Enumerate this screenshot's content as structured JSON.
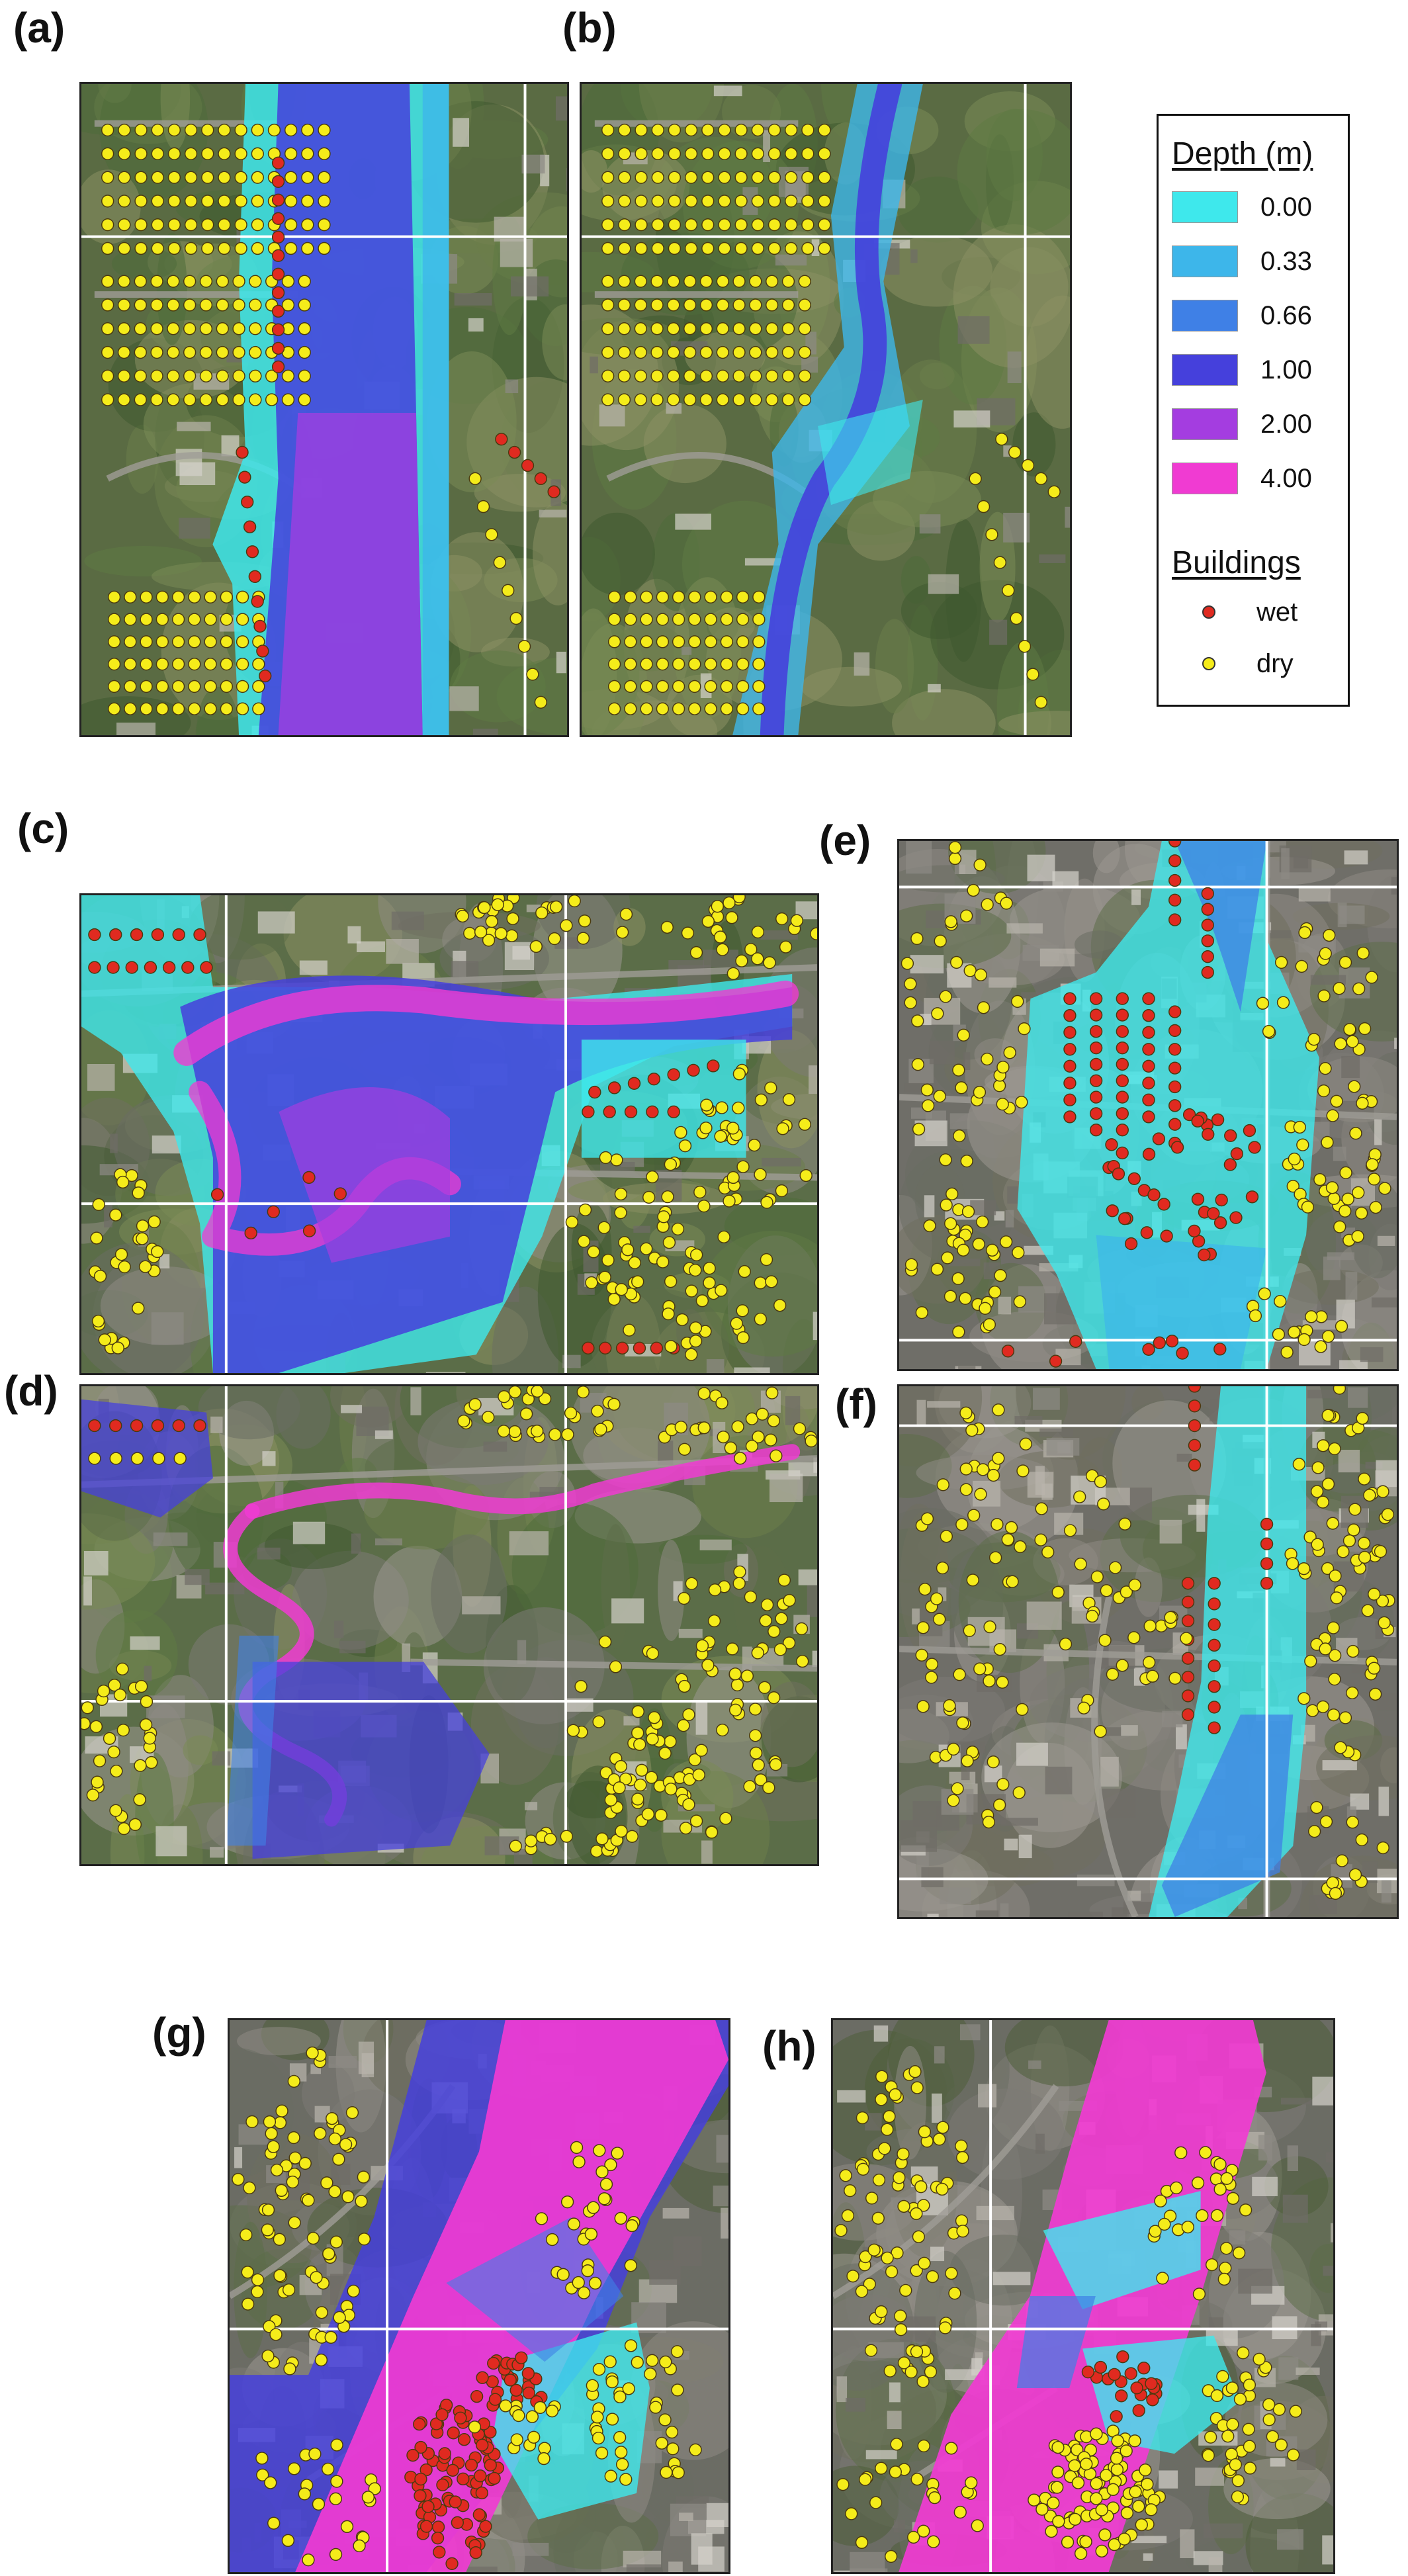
{
  "panels": [
    {
      "id": "a",
      "label": "(a)",
      "scene": "a"
    },
    {
      "id": "b",
      "label": "(b)",
      "scene": "b"
    },
    {
      "id": "c",
      "label": "(c)",
      "scene": "c"
    },
    {
      "id": "d",
      "label": "(d)",
      "scene": "d"
    },
    {
      "id": "e",
      "label": "(e)",
      "scene": "e"
    },
    {
      "id": "f",
      "label": "(f)",
      "scene": "f"
    },
    {
      "id": "g",
      "label": "(g)",
      "scene": "g"
    },
    {
      "id": "h",
      "label": "(h)",
      "scene": "h"
    }
  ],
  "legend": {
    "depth_title": "Depth (m)",
    "depth_classes": [
      {
        "label": "0.00",
        "color": "#3ee8ec"
      },
      {
        "label": "0.33",
        "color": "#3db6ea"
      },
      {
        "label": "0.66",
        "color": "#3f80e6"
      },
      {
        "label": "1.00",
        "color": "#4540dc"
      },
      {
        "label": "2.00",
        "color": "#a43de0"
      },
      {
        "label": "4.00",
        "color": "#f03bd2"
      }
    ],
    "buildings_title": "Buildings",
    "building_classes": [
      {
        "label": "wet",
        "color": "#e02a20"
      },
      {
        "label": "dry",
        "color": "#f5ec1a"
      }
    ]
  }
}
